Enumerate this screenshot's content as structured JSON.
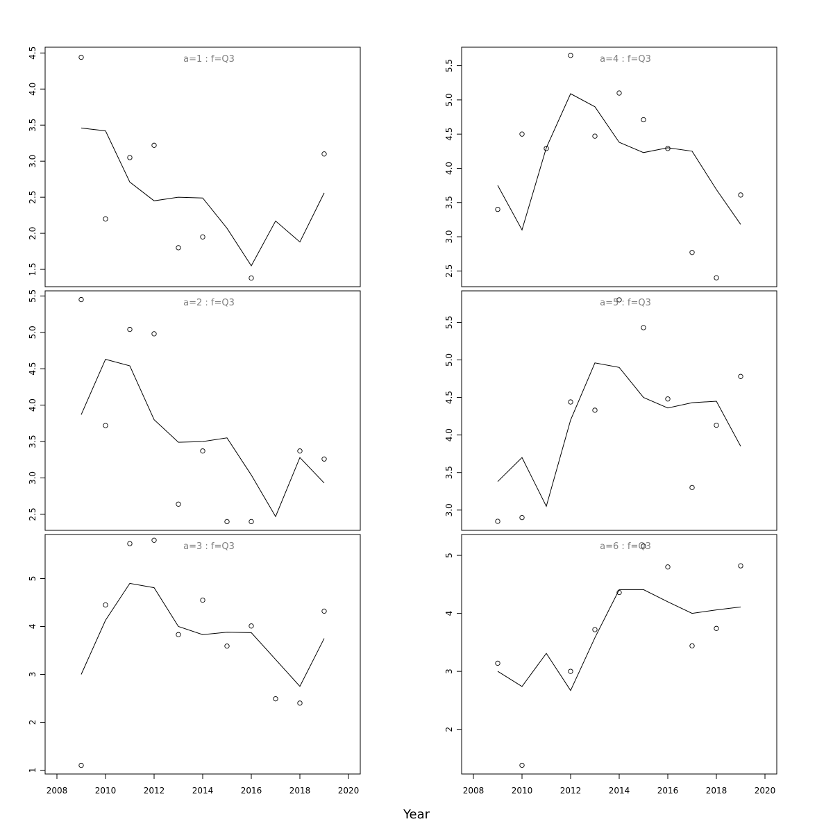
{
  "chart_data": {
    "type": "scatter",
    "xlabel": "Year",
    "xlim": [
      2008,
      2020
    ],
    "xticks": [
      2008,
      2010,
      2012,
      2014,
      2016,
      2018,
      2020
    ],
    "colors": {
      "points": "#000000",
      "line": "#000000",
      "panel_label": "#808080"
    },
    "panels": [
      {
        "label": "a=1 : f=Q3",
        "yticks": [
          "1.5",
          "2.0",
          "2.5",
          "3.0",
          "3.5",
          "4.0",
          "4.5"
        ],
        "ylim": [
          1.26,
          4.58
        ],
        "points": [
          [
            2009,
            4.44
          ],
          [
            2010,
            2.2
          ],
          [
            2011,
            3.05
          ],
          [
            2012,
            3.22
          ],
          [
            2013,
            1.8
          ],
          [
            2014,
            1.95
          ],
          [
            2016,
            1.38
          ],
          [
            2019,
            3.1
          ]
        ],
        "line": [
          [
            2009,
            3.46
          ],
          [
            2010,
            3.42
          ],
          [
            2011,
            2.71
          ],
          [
            2012,
            2.45
          ],
          [
            2013,
            2.5
          ],
          [
            2014,
            2.49
          ],
          [
            2015,
            2.07
          ],
          [
            2016,
            1.55
          ],
          [
            2017,
            2.17
          ],
          [
            2018,
            1.88
          ],
          [
            2019,
            2.56
          ]
        ]
      },
      {
        "label": "a=2 : f=Q3",
        "yticks": [
          "2.5",
          "3.0",
          "3.5",
          "4.0",
          "4.5",
          "5.0",
          "5.5"
        ],
        "ylim": [
          2.28,
          5.57
        ],
        "points": [
          [
            2009,
            5.45
          ],
          [
            2010,
            3.72
          ],
          [
            2011,
            5.04
          ],
          [
            2012,
            4.98
          ],
          [
            2013,
            2.64
          ],
          [
            2014,
            3.37
          ],
          [
            2015,
            2.4
          ],
          [
            2016,
            2.4
          ],
          [
            2018,
            3.37
          ],
          [
            2019,
            3.26
          ]
        ],
        "line": [
          [
            2009,
            3.87
          ],
          [
            2010,
            4.63
          ],
          [
            2011,
            4.54
          ],
          [
            2012,
            3.8
          ],
          [
            2013,
            3.49
          ],
          [
            2014,
            3.5
          ],
          [
            2015,
            3.55
          ],
          [
            2016,
            3.04
          ],
          [
            2017,
            2.47
          ],
          [
            2018,
            3.28
          ],
          [
            2019,
            2.93
          ]
        ]
      },
      {
        "label": "a=3 : f=Q3",
        "yticks": [
          "1",
          "2",
          "3",
          "4",
          "5"
        ],
        "ylim": [
          0.92,
          5.92
        ],
        "points": [
          [
            2009,
            1.1
          ],
          [
            2010,
            4.45
          ],
          [
            2011,
            5.73
          ],
          [
            2012,
            5.8
          ],
          [
            2013,
            3.83
          ],
          [
            2014,
            4.55
          ],
          [
            2015,
            3.59
          ],
          [
            2016,
            4.01
          ],
          [
            2017,
            2.49
          ],
          [
            2018,
            2.4
          ],
          [
            2019,
            4.32
          ]
        ],
        "line": [
          [
            2009,
            3.0
          ],
          [
            2010,
            4.13
          ],
          [
            2011,
            4.9
          ],
          [
            2012,
            4.81
          ],
          [
            2013,
            4.0
          ],
          [
            2014,
            3.83
          ],
          [
            2015,
            3.88
          ],
          [
            2016,
            3.87
          ],
          [
            2017,
            3.31
          ],
          [
            2018,
            2.75
          ],
          [
            2019,
            3.75
          ]
        ]
      },
      {
        "label": "a=4 : f=Q3",
        "yticks": [
          "2.5",
          "3.0",
          "3.5",
          "4.0",
          "4.5",
          "5.0",
          "5.5"
        ],
        "ylim": [
          2.27,
          5.77
        ],
        "points": [
          [
            2009,
            3.4
          ],
          [
            2010,
            4.5
          ],
          [
            2011,
            4.29
          ],
          [
            2012,
            5.65
          ],
          [
            2013,
            4.47
          ],
          [
            2014,
            5.1
          ],
          [
            2015,
            4.71
          ],
          [
            2016,
            4.29
          ],
          [
            2017,
            2.77
          ],
          [
            2018,
            2.4
          ],
          [
            2019,
            3.61
          ]
        ],
        "line": [
          [
            2009,
            3.75
          ],
          [
            2010,
            3.1
          ],
          [
            2011,
            4.3
          ],
          [
            2012,
            5.09
          ],
          [
            2013,
            4.9
          ],
          [
            2014,
            4.38
          ],
          [
            2015,
            4.23
          ],
          [
            2016,
            4.3
          ],
          [
            2017,
            4.25
          ],
          [
            2018,
            3.69
          ],
          [
            2019,
            3.18
          ]
        ]
      },
      {
        "label": "a=5 : f=Q3",
        "yticks": [
          "3.0",
          "3.5",
          "4.0",
          "4.5",
          "5.0",
          "5.5"
        ],
        "ylim": [
          2.73,
          5.92
        ],
        "points": [
          [
            2009,
            2.85
          ],
          [
            2010,
            2.9
          ],
          [
            2012,
            4.44
          ],
          [
            2013,
            4.33
          ],
          [
            2014,
            5.8
          ],
          [
            2015,
            5.43
          ],
          [
            2016,
            4.48
          ],
          [
            2017,
            3.3
          ],
          [
            2018,
            4.13
          ],
          [
            2019,
            4.78
          ]
        ],
        "line": [
          [
            2009,
            3.38
          ],
          [
            2010,
            3.7
          ],
          [
            2011,
            3.05
          ],
          [
            2012,
            4.2
          ],
          [
            2013,
            4.96
          ],
          [
            2014,
            4.9
          ],
          [
            2015,
            4.5
          ],
          [
            2016,
            4.36
          ],
          [
            2017,
            4.43
          ],
          [
            2018,
            4.45
          ],
          [
            2019,
            3.85
          ]
        ]
      },
      {
        "label": "a=6 : f=Q3",
        "yticks": [
          "2",
          "3",
          "4",
          "5"
        ],
        "ylim": [
          1.23,
          5.36
        ],
        "points": [
          [
            2009,
            3.14
          ],
          [
            2010,
            1.38
          ],
          [
            2012,
            3.0
          ],
          [
            2013,
            3.72
          ],
          [
            2014,
            4.36
          ],
          [
            2015,
            5.16
          ],
          [
            2016,
            4.8
          ],
          [
            2017,
            3.44
          ],
          [
            2018,
            3.74
          ],
          [
            2019,
            4.82
          ]
        ],
        "line": [
          [
            2009,
            3.0
          ],
          [
            2010,
            2.74
          ],
          [
            2011,
            3.31
          ],
          [
            2012,
            2.67
          ],
          [
            2013,
            3.58
          ],
          [
            2014,
            4.41
          ],
          [
            2015,
            4.41
          ],
          [
            2016,
            4.2
          ],
          [
            2017,
            4.0
          ],
          [
            2018,
            4.06
          ],
          [
            2019,
            4.11
          ]
        ]
      }
    ]
  }
}
